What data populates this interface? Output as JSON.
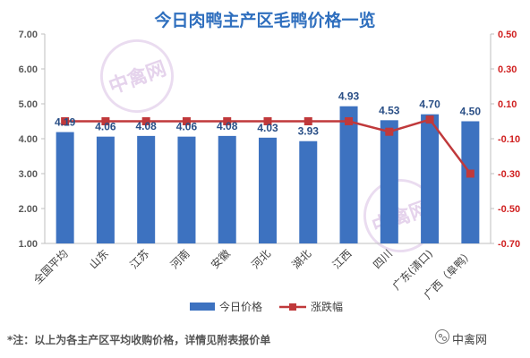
{
  "title": "今日肉鸭主产区毛鸭价格一览",
  "note": "*注：以上为各主产区平均收购价格，详情见附表报价单",
  "brand": "中禽网",
  "watermark": "中禽网",
  "colors": {
    "bar": "#3d72c0",
    "line": "#c0393b",
    "title": "#2f6fbe",
    "right_axis": "#d02020"
  },
  "chart_data": {
    "type": "bar",
    "categories": [
      "全国平均",
      "山东",
      "江苏",
      "河南",
      "安徽",
      "河北",
      "湖北",
      "江西",
      "四川",
      "广东(清口)",
      "广西（阜鸭）"
    ],
    "series": [
      {
        "name": "今日价格",
        "type": "bar",
        "axis": "left",
        "values": [
          4.19,
          4.06,
          4.08,
          4.06,
          4.08,
          4.03,
          3.93,
          4.93,
          4.53,
          4.7,
          4.5
        ],
        "labels": [
          "4.19",
          "4.06",
          "4.08",
          "4.06",
          "4.08",
          "4.03",
          "3.93",
          "4.93",
          "4.53",
          "4.70",
          "4.50"
        ]
      },
      {
        "name": "涨跌幅",
        "type": "line",
        "axis": "right",
        "values": [
          0.0,
          0.0,
          0.0,
          0.0,
          0.0,
          0.0,
          0.0,
          0.0,
          -0.06,
          0.01,
          -0.3
        ]
      }
    ],
    "ylim_left": [
      1.0,
      7.0
    ],
    "yticks_left": [
      "1.00",
      "2.00",
      "3.00",
      "4.00",
      "5.00",
      "6.00",
      "7.00"
    ],
    "ylim_right": [
      -0.7,
      0.5
    ],
    "yticks_right": [
      "-0.70",
      "-0.50",
      "-0.30",
      "-0.10",
      "0.10",
      "0.30",
      "0.50"
    ],
    "legend_position": "bottom",
    "grid": false
  }
}
